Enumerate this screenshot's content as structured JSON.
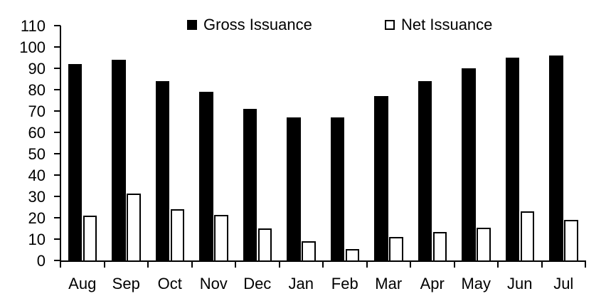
{
  "chart_data": {
    "type": "bar",
    "title": "",
    "categories": [
      "Aug",
      "Sep",
      "Oct",
      "Nov",
      "Dec",
      "Jan",
      "Feb",
      "Mar",
      "Apr",
      "May",
      "Jun",
      "Jul"
    ],
    "series": [
      {
        "name": "Gross Issuance",
        "style": "solid",
        "fill_color": "#000000",
        "values": [
          92,
          94,
          84,
          79,
          71,
          67,
          67,
          77,
          84,
          90,
          95,
          96
        ]
      },
      {
        "name": "Net Issuance",
        "style": "outline",
        "fill_color": "#ffffff",
        "border_color": "#000000",
        "values": [
          21,
          31.5,
          24,
          21.5,
          15,
          9,
          5.5,
          11,
          13.5,
          15.5,
          23,
          19
        ]
      }
    ],
    "xlabel": "",
    "ylabel": "",
    "ylim": [
      0,
      110
    ],
    "ytick_step": 10,
    "ytick_labels": [
      "0",
      "10",
      "20",
      "30",
      "40",
      "50",
      "60",
      "70",
      "80",
      "90",
      "100",
      "110"
    ],
    "grid": false,
    "legend_position": "top-center",
    "axis_color": "#000000",
    "background_color": "#ffffff"
  }
}
